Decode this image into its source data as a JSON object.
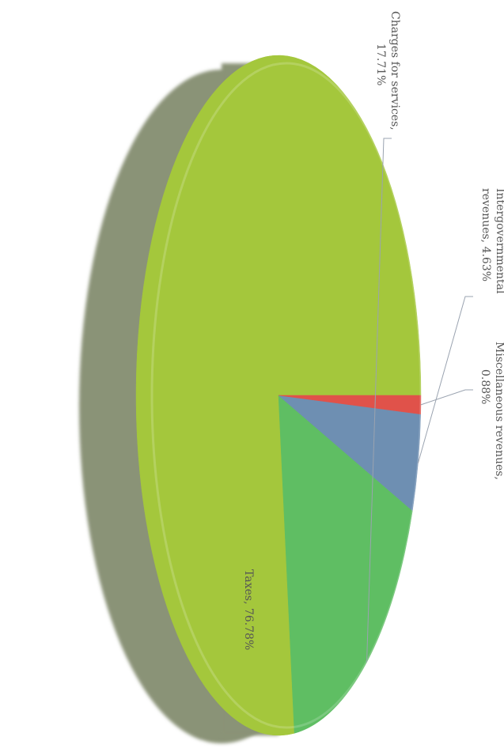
{
  "chart_data": {
    "type": "pie",
    "title": "",
    "style": "3d",
    "orientation": "rotated-90-clockwise",
    "slices": [
      {
        "label": "Taxes",
        "value": 76.78,
        "display": "76.78%",
        "color": "#a4c73c"
      },
      {
        "label": "Charges for services",
        "value": 17.71,
        "display": "17.71%",
        "color": "#5fbe63"
      },
      {
        "label": "Intergovernmental revenues",
        "value": 4.63,
        "display": "4.63%",
        "color": "#6e8fb2"
      },
      {
        "label": "Miscellaneous revenues",
        "value": 0.88,
        "display": "0.88%",
        "color": "#e0524a"
      }
    ],
    "labels": {
      "charges": [
        "Charges for services,",
        "17.71%"
      ],
      "intergov": [
        "Intergovernmental",
        "revenues, 4.63%"
      ],
      "misc": [
        "Miscellaneous revenues,",
        "0.88%"
      ],
      "taxes": [
        "Taxes, 76.78%"
      ]
    },
    "side_color": "#8a9377"
  }
}
